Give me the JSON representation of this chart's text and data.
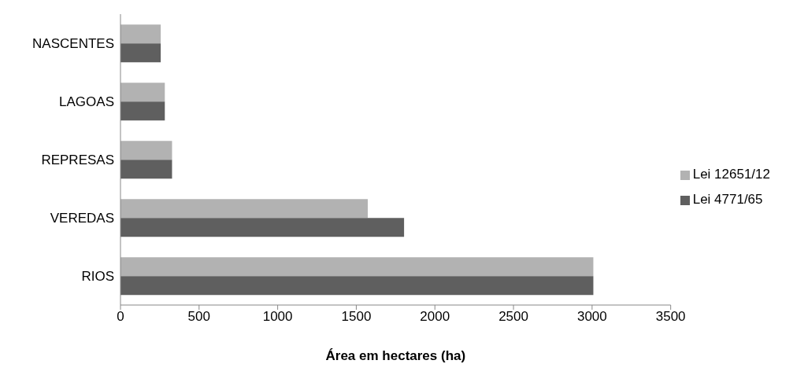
{
  "chart_data": {
    "type": "bar",
    "orientation": "horizontal",
    "xlabel": "Área em hectares (ha)",
    "categories": [
      "NASCENTES",
      "LAGOAS",
      "REPRESAS",
      "VEREDAS",
      "RIOS"
    ],
    "series": [
      {
        "name": "Lei 12651/12",
        "color": "#b2b2b2",
        "values": [
          256,
          282,
          328,
          1573,
          3008
        ]
      },
      {
        "name": "Lei 4771/65",
        "color": "#5f5f5f",
        "values": [
          256,
          282,
          328,
          1804,
          3008
        ]
      }
    ],
    "xlim": [
      0,
      3500
    ],
    "xticks": [
      0,
      500,
      1000,
      1500,
      2000,
      2500,
      3000,
      3500
    ],
    "grid": false,
    "legend": "right"
  }
}
